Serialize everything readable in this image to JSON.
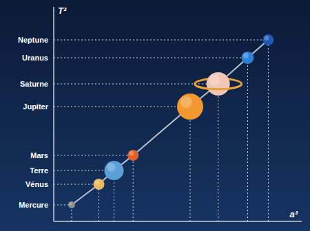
{
  "chart_data": {
    "type": "scatter",
    "x_label": "a³",
    "y_label": "T²",
    "x": [
      7.2,
      18.2,
      24.3,
      32.0,
      55.0,
      66.3,
      78.2,
      86.5
    ],
    "y": [
      7.7,
      17.3,
      23.7,
      30.8,
      53.5,
      64.1,
      76.3,
      84.6
    ],
    "sizes": [
      5,
      8,
      14,
      8,
      19,
      17,
      9,
      8
    ],
    "colors": [
      "#8c8c8c",
      "#e9b864",
      "#5b9fd6",
      "#e0622a",
      "#f2982f",
      "#f1c6b4",
      "#2f80d8",
      "#2058b4"
    ],
    "markers": [
      "circle",
      "circle",
      "circle",
      "circle",
      "circle",
      "ringed",
      "circle",
      "circle"
    ],
    "line_style": "solid",
    "xlim": [
      0,
      100
    ],
    "ylim": [
      0,
      100
    ],
    "yticks": [
      {
        "value": 7.7,
        "label": "Mercure"
      },
      {
        "value": 17.3,
        "label": "Vénus"
      },
      {
        "value": 23.7,
        "label": "Terre"
      },
      {
        "value": 30.8,
        "label": "Mars"
      },
      {
        "value": 53.5,
        "label": "Jupiter"
      },
      {
        "value": 64.1,
        "label": "Saturne"
      },
      {
        "value": 76.3,
        "label": "Uranus"
      },
      {
        "value": 84.6,
        "label": "Neptune"
      }
    ],
    "tick_labels": "y",
    "grid": false
  }
}
